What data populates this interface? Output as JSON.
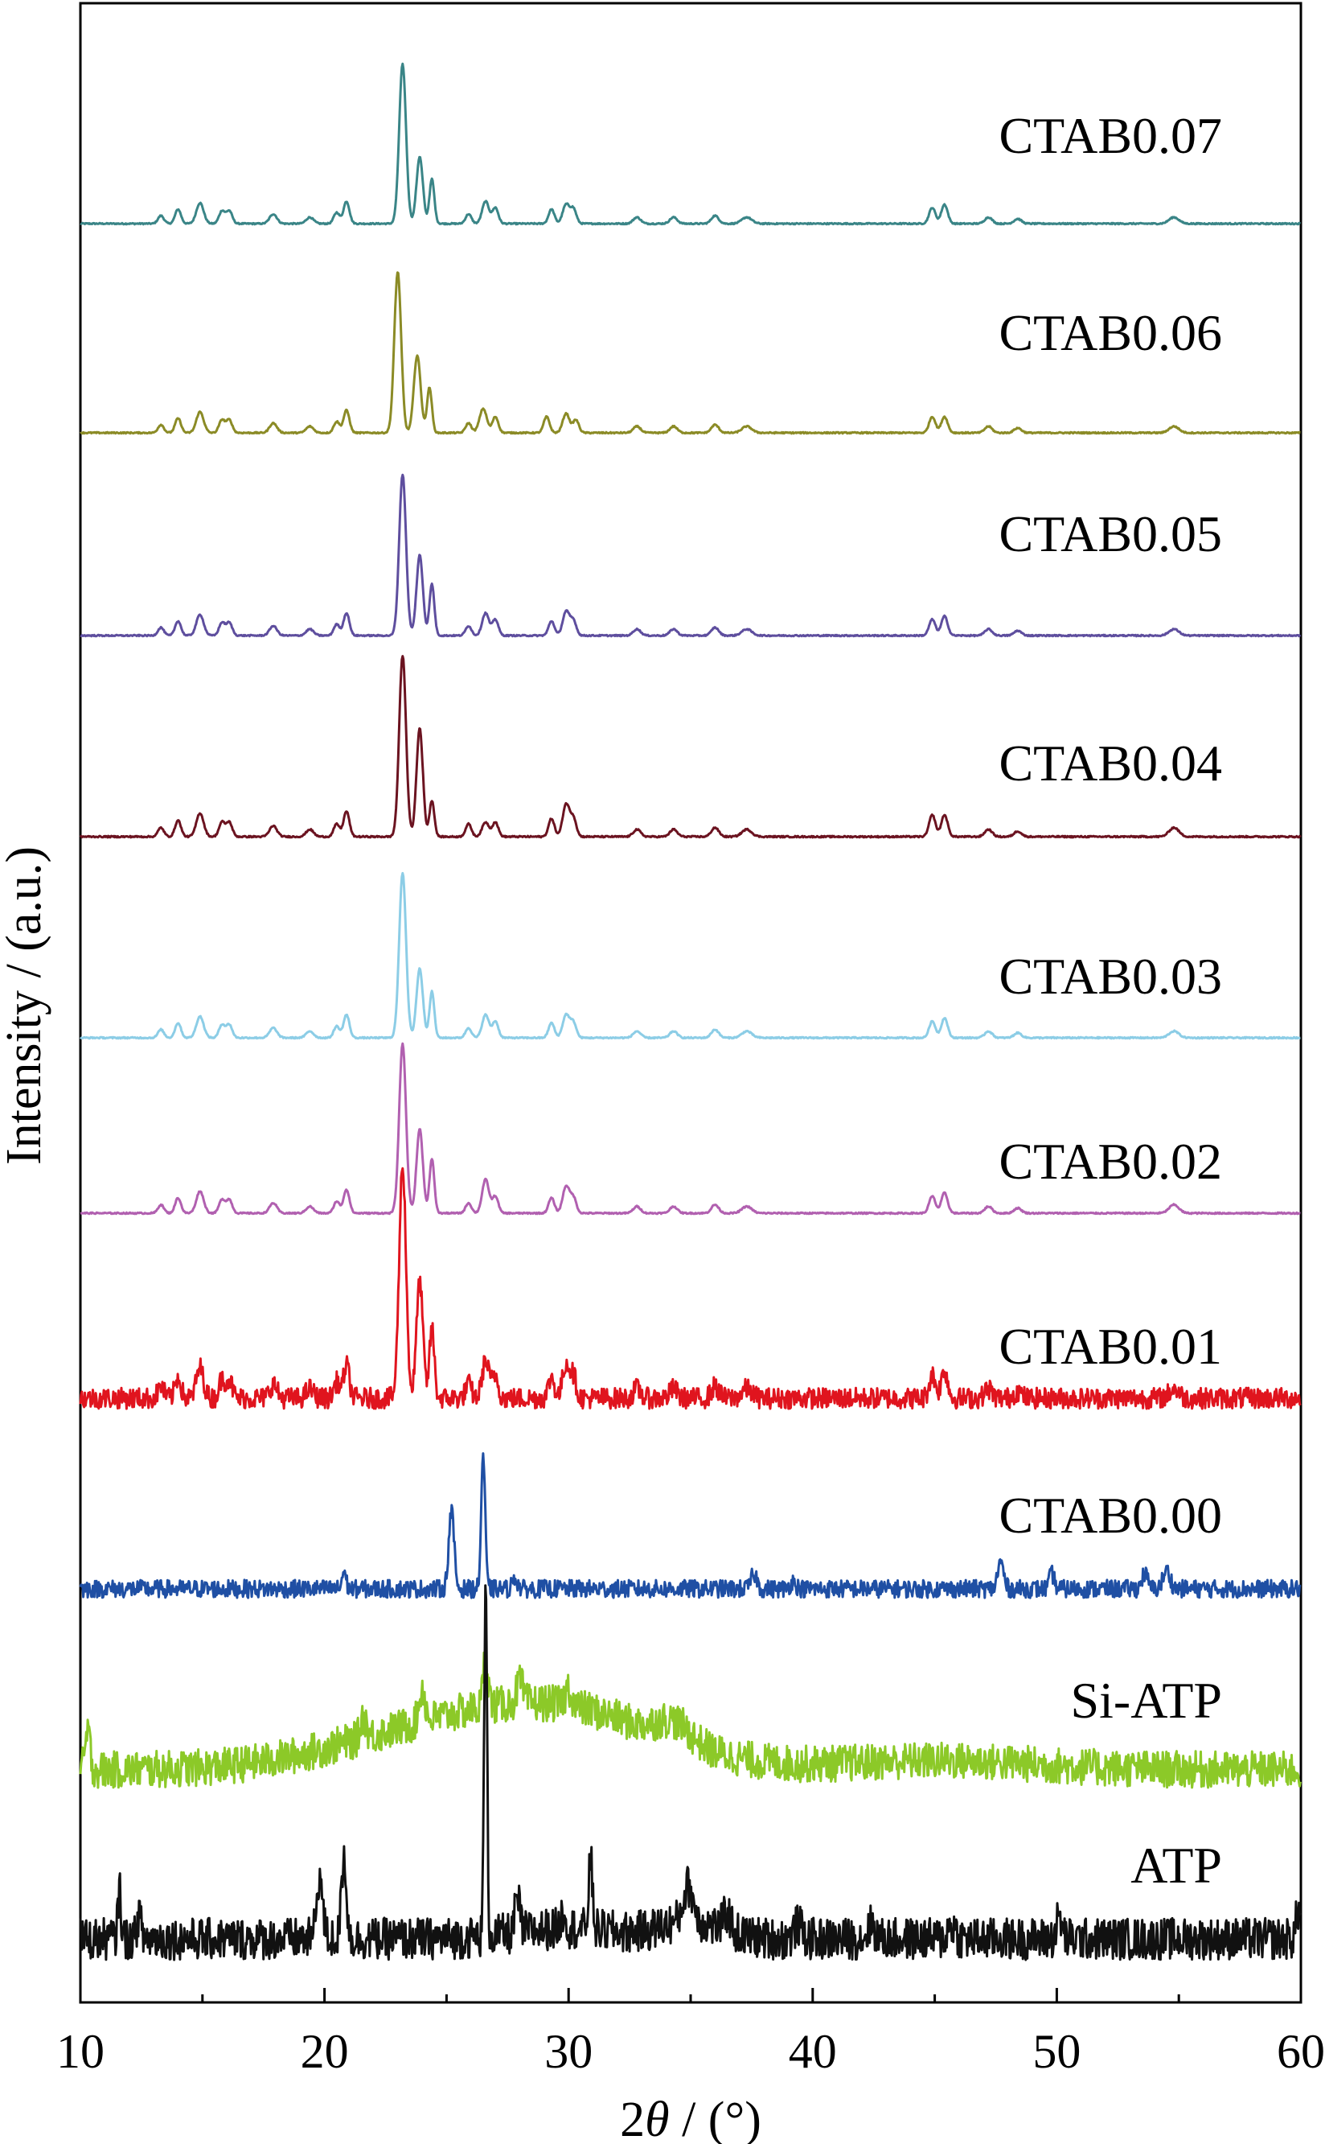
{
  "chart_data": {
    "type": "line",
    "title": "",
    "xlabel_pre": "2",
    "xlabel_theta": "θ",
    "xlabel_post": " / (°)",
    "ylabel": "Intensity / (a.u.)",
    "xlim": [
      10,
      60
    ],
    "x_ticks": [
      10,
      20,
      30,
      40,
      50,
      60
    ],
    "x_tick_labels": [
      "10",
      "20",
      "30",
      "40",
      "50",
      "60"
    ],
    "y_ticks": false,
    "grid": false,
    "legend": "inline labels at right of each curve",
    "series": [
      {
        "name": "CTAB0.07",
        "color": "#3a8587",
        "noise": 0.004,
        "peaks": [
          [
            13.3,
            0.05,
            0.12
          ],
          [
            14.0,
            0.09,
            0.12
          ],
          [
            14.9,
            0.13,
            0.15
          ],
          [
            15.8,
            0.08,
            0.12
          ],
          [
            16.1,
            0.08,
            0.12
          ],
          [
            17.9,
            0.06,
            0.15
          ],
          [
            19.4,
            0.04,
            0.15
          ],
          [
            20.5,
            0.07,
            0.12
          ],
          [
            20.9,
            0.14,
            0.12
          ],
          [
            23.2,
            1.0,
            0.14
          ],
          [
            23.9,
            0.42,
            0.13
          ],
          [
            24.4,
            0.28,
            0.1
          ],
          [
            25.9,
            0.06,
            0.12
          ],
          [
            26.6,
            0.14,
            0.14
          ],
          [
            27.0,
            0.1,
            0.12
          ],
          [
            29.3,
            0.09,
            0.12
          ],
          [
            29.9,
            0.12,
            0.14
          ],
          [
            30.2,
            0.09,
            0.12
          ],
          [
            32.8,
            0.04,
            0.15
          ],
          [
            34.3,
            0.04,
            0.15
          ],
          [
            36.0,
            0.05,
            0.15
          ],
          [
            37.3,
            0.04,
            0.2
          ],
          [
            44.9,
            0.1,
            0.13
          ],
          [
            45.4,
            0.12,
            0.13
          ],
          [
            47.2,
            0.04,
            0.15
          ],
          [
            48.4,
            0.03,
            0.15
          ],
          [
            54.8,
            0.04,
            0.2
          ]
        ]
      },
      {
        "name": "CTAB0.06",
        "color": "#8b8b26",
        "noise": 0.004,
        "peaks": [
          [
            13.3,
            0.05,
            0.12
          ],
          [
            14.0,
            0.09,
            0.12
          ],
          [
            14.9,
            0.13,
            0.15
          ],
          [
            15.8,
            0.08,
            0.12
          ],
          [
            16.1,
            0.08,
            0.12
          ],
          [
            17.9,
            0.06,
            0.15
          ],
          [
            19.4,
            0.04,
            0.15
          ],
          [
            20.5,
            0.07,
            0.12
          ],
          [
            20.9,
            0.14,
            0.12
          ],
          [
            23.0,
            1.0,
            0.14
          ],
          [
            23.8,
            0.48,
            0.14
          ],
          [
            24.3,
            0.28,
            0.1
          ],
          [
            25.9,
            0.06,
            0.12
          ],
          [
            26.5,
            0.15,
            0.15
          ],
          [
            27.0,
            0.1,
            0.12
          ],
          [
            29.1,
            0.1,
            0.12
          ],
          [
            29.9,
            0.12,
            0.14
          ],
          [
            30.3,
            0.08,
            0.12
          ],
          [
            32.8,
            0.04,
            0.15
          ],
          [
            34.3,
            0.04,
            0.15
          ],
          [
            36.0,
            0.05,
            0.15
          ],
          [
            37.3,
            0.04,
            0.2
          ],
          [
            44.9,
            0.1,
            0.13
          ],
          [
            45.4,
            0.1,
            0.13
          ],
          [
            47.2,
            0.04,
            0.15
          ],
          [
            48.4,
            0.03,
            0.15
          ],
          [
            54.8,
            0.04,
            0.2
          ]
        ]
      },
      {
        "name": "CTAB0.05",
        "color": "#5e4e9e",
        "noise": 0.004,
        "peaks": [
          [
            13.3,
            0.05,
            0.12
          ],
          [
            14.0,
            0.09,
            0.12
          ],
          [
            14.9,
            0.13,
            0.15
          ],
          [
            15.8,
            0.08,
            0.12
          ],
          [
            16.1,
            0.08,
            0.12
          ],
          [
            17.9,
            0.06,
            0.15
          ],
          [
            19.4,
            0.04,
            0.15
          ],
          [
            20.5,
            0.07,
            0.12
          ],
          [
            20.9,
            0.14,
            0.12
          ],
          [
            23.2,
            1.0,
            0.14
          ],
          [
            23.9,
            0.5,
            0.13
          ],
          [
            24.4,
            0.32,
            0.1
          ],
          [
            25.9,
            0.06,
            0.12
          ],
          [
            26.6,
            0.14,
            0.14
          ],
          [
            27.0,
            0.1,
            0.12
          ],
          [
            29.3,
            0.09,
            0.12
          ],
          [
            29.9,
            0.15,
            0.14
          ],
          [
            30.2,
            0.09,
            0.12
          ],
          [
            32.8,
            0.04,
            0.15
          ],
          [
            34.3,
            0.04,
            0.15
          ],
          [
            36.0,
            0.05,
            0.15
          ],
          [
            37.3,
            0.04,
            0.2
          ],
          [
            44.9,
            0.1,
            0.13
          ],
          [
            45.4,
            0.12,
            0.13
          ],
          [
            47.2,
            0.04,
            0.15
          ],
          [
            48.4,
            0.03,
            0.15
          ],
          [
            54.8,
            0.04,
            0.2
          ]
        ]
      },
      {
        "name": "CTAB0.04",
        "color": "#6b1320",
        "noise": 0.004,
        "peaks": [
          [
            13.3,
            0.05,
            0.12
          ],
          [
            14.0,
            0.09,
            0.12
          ],
          [
            14.9,
            0.13,
            0.15
          ],
          [
            15.8,
            0.08,
            0.12
          ],
          [
            16.1,
            0.08,
            0.12
          ],
          [
            17.9,
            0.06,
            0.15
          ],
          [
            19.4,
            0.04,
            0.15
          ],
          [
            20.5,
            0.07,
            0.12
          ],
          [
            20.9,
            0.14,
            0.12
          ],
          [
            23.2,
            1.0,
            0.14
          ],
          [
            23.9,
            0.6,
            0.13
          ],
          [
            24.4,
            0.2,
            0.1
          ],
          [
            25.9,
            0.07,
            0.12
          ],
          [
            26.6,
            0.08,
            0.14
          ],
          [
            27.0,
            0.08,
            0.12
          ],
          [
            29.3,
            0.1,
            0.12
          ],
          [
            29.9,
            0.18,
            0.14
          ],
          [
            30.2,
            0.1,
            0.12
          ],
          [
            32.8,
            0.04,
            0.15
          ],
          [
            34.3,
            0.04,
            0.15
          ],
          [
            36.0,
            0.05,
            0.15
          ],
          [
            37.3,
            0.04,
            0.2
          ],
          [
            44.9,
            0.12,
            0.13
          ],
          [
            45.4,
            0.12,
            0.13
          ],
          [
            47.2,
            0.04,
            0.15
          ],
          [
            48.4,
            0.03,
            0.15
          ],
          [
            54.8,
            0.05,
            0.2
          ]
        ]
      },
      {
        "name": "CTAB0.03",
        "color": "#8ccde6",
        "noise": 0.004,
        "peaks": [
          [
            13.3,
            0.05,
            0.12
          ],
          [
            14.0,
            0.09,
            0.12
          ],
          [
            14.9,
            0.13,
            0.15
          ],
          [
            15.8,
            0.08,
            0.12
          ],
          [
            16.1,
            0.08,
            0.12
          ],
          [
            17.9,
            0.06,
            0.15
          ],
          [
            19.4,
            0.04,
            0.15
          ],
          [
            20.5,
            0.07,
            0.12
          ],
          [
            20.9,
            0.14,
            0.12
          ],
          [
            23.2,
            1.0,
            0.14
          ],
          [
            23.9,
            0.42,
            0.13
          ],
          [
            24.4,
            0.28,
            0.1
          ],
          [
            25.9,
            0.06,
            0.12
          ],
          [
            26.6,
            0.14,
            0.14
          ],
          [
            27.0,
            0.1,
            0.12
          ],
          [
            29.3,
            0.09,
            0.12
          ],
          [
            29.9,
            0.14,
            0.14
          ],
          [
            30.2,
            0.09,
            0.12
          ],
          [
            32.8,
            0.04,
            0.15
          ],
          [
            34.3,
            0.04,
            0.15
          ],
          [
            36.0,
            0.05,
            0.15
          ],
          [
            37.3,
            0.04,
            0.2
          ],
          [
            44.9,
            0.1,
            0.13
          ],
          [
            45.4,
            0.12,
            0.13
          ],
          [
            47.2,
            0.04,
            0.15
          ],
          [
            48.4,
            0.03,
            0.15
          ],
          [
            54.8,
            0.04,
            0.2
          ]
        ]
      },
      {
        "name": "CTAB0.02",
        "color": "#b160b0",
        "noise": 0.004,
        "peaks": [
          [
            13.3,
            0.05,
            0.12
          ],
          [
            14.0,
            0.09,
            0.12
          ],
          [
            14.9,
            0.13,
            0.15
          ],
          [
            15.8,
            0.08,
            0.12
          ],
          [
            16.1,
            0.08,
            0.12
          ],
          [
            17.9,
            0.06,
            0.15
          ],
          [
            19.4,
            0.04,
            0.15
          ],
          [
            20.5,
            0.07,
            0.12
          ],
          [
            20.9,
            0.14,
            0.12
          ],
          [
            23.2,
            1.0,
            0.14
          ],
          [
            23.9,
            0.5,
            0.13
          ],
          [
            24.4,
            0.32,
            0.1
          ],
          [
            25.9,
            0.06,
            0.12
          ],
          [
            26.6,
            0.2,
            0.14
          ],
          [
            27.0,
            0.1,
            0.12
          ],
          [
            29.3,
            0.09,
            0.12
          ],
          [
            29.9,
            0.16,
            0.14
          ],
          [
            30.2,
            0.09,
            0.12
          ],
          [
            32.8,
            0.04,
            0.15
          ],
          [
            34.3,
            0.04,
            0.15
          ],
          [
            36.0,
            0.05,
            0.15
          ],
          [
            37.3,
            0.04,
            0.2
          ],
          [
            44.9,
            0.1,
            0.13
          ],
          [
            45.4,
            0.12,
            0.13
          ],
          [
            47.2,
            0.04,
            0.15
          ],
          [
            48.4,
            0.03,
            0.15
          ],
          [
            54.8,
            0.05,
            0.2
          ]
        ]
      },
      {
        "name": "CTAB0.01",
        "color": "#e0141e",
        "noise": 0.045,
        "peaks": [
          [
            13.3,
            0.05,
            0.12
          ],
          [
            14.0,
            0.09,
            0.12
          ],
          [
            14.9,
            0.13,
            0.15
          ],
          [
            15.8,
            0.08,
            0.12
          ],
          [
            16.1,
            0.08,
            0.12
          ],
          [
            17.9,
            0.06,
            0.15
          ],
          [
            19.4,
            0.04,
            0.15
          ],
          [
            20.5,
            0.07,
            0.12
          ],
          [
            20.9,
            0.14,
            0.12
          ],
          [
            23.2,
            1.0,
            0.14
          ],
          [
            23.9,
            0.5,
            0.13
          ],
          [
            24.4,
            0.3,
            0.1
          ],
          [
            25.9,
            0.06,
            0.12
          ],
          [
            26.6,
            0.16,
            0.14
          ],
          [
            27.0,
            0.1,
            0.12
          ],
          [
            29.3,
            0.09,
            0.12
          ],
          [
            29.9,
            0.15,
            0.14
          ],
          [
            30.2,
            0.09,
            0.12
          ],
          [
            32.8,
            0.04,
            0.15
          ],
          [
            34.3,
            0.04,
            0.15
          ],
          [
            36.0,
            0.05,
            0.15
          ],
          [
            37.3,
            0.04,
            0.2
          ],
          [
            44.9,
            0.1,
            0.13
          ],
          [
            45.4,
            0.12,
            0.13
          ],
          [
            47.2,
            0.04,
            0.15
          ],
          [
            48.4,
            0.03,
            0.15
          ],
          [
            54.8,
            0.04,
            0.2
          ]
        ]
      },
      {
        "name": "CTAB0.00",
        "color": "#1f4fa4",
        "noise": 0.06,
        "peaks": [
          [
            20.8,
            0.12,
            0.08
          ],
          [
            25.2,
            0.52,
            0.11
          ],
          [
            26.5,
            0.9,
            0.08
          ],
          [
            27.8,
            0.08,
            0.1
          ],
          [
            37.6,
            0.1,
            0.12
          ],
          [
            39.2,
            0.05,
            0.12
          ],
          [
            47.7,
            0.18,
            0.12
          ],
          [
            49.8,
            0.1,
            0.1
          ],
          [
            53.6,
            0.1,
            0.12
          ],
          [
            54.5,
            0.12,
            0.15
          ]
        ]
      },
      {
        "name": "Si-ATP",
        "color": "#8cc928",
        "noise": 0.1,
        "hump": [
          [
            22.5,
            0.12,
            3.5
          ],
          [
            27.5,
            0.22,
            3.5
          ],
          [
            31.5,
            0.18,
            3.5
          ],
          [
            34.3,
            0.1,
            0.7
          ],
          [
            45.0,
            0.05,
            4
          ]
        ],
        "peaks": [
          [
            10.3,
            0.2,
            0.1
          ],
          [
            21.6,
            0.12,
            0.12
          ],
          [
            24.0,
            0.18,
            0.12
          ],
          [
            26.6,
            0.28,
            0.1
          ],
          [
            28.0,
            0.12,
            0.12
          ],
          [
            30.0,
            0.1,
            0.12
          ]
        ]
      },
      {
        "name": "ATP",
        "color": "#111111",
        "noise": 0.06,
        "hump": [
          [
            35.0,
            0.05,
            1.2
          ],
          [
            30.0,
            0.03,
            2
          ]
        ],
        "peaks": [
          [
            11.6,
            0.15,
            0.06
          ],
          [
            12.4,
            0.07,
            0.08
          ],
          [
            19.8,
            0.18,
            0.12
          ],
          [
            20.8,
            0.24,
            0.1
          ],
          [
            26.6,
            1.0,
            0.06
          ],
          [
            27.9,
            0.1,
            0.1
          ],
          [
            29.8,
            0.05,
            0.1
          ],
          [
            30.9,
            0.2,
            0.08
          ],
          [
            34.9,
            0.1,
            0.2
          ],
          [
            36.5,
            0.05,
            0.15
          ],
          [
            39.4,
            0.04,
            0.15
          ],
          [
            42.4,
            0.04,
            0.15
          ],
          [
            45.7,
            0.04,
            0.15
          ],
          [
            50.1,
            0.06,
            0.12
          ],
          [
            59.9,
            0.08,
            0.1
          ]
        ]
      }
    ]
  }
}
